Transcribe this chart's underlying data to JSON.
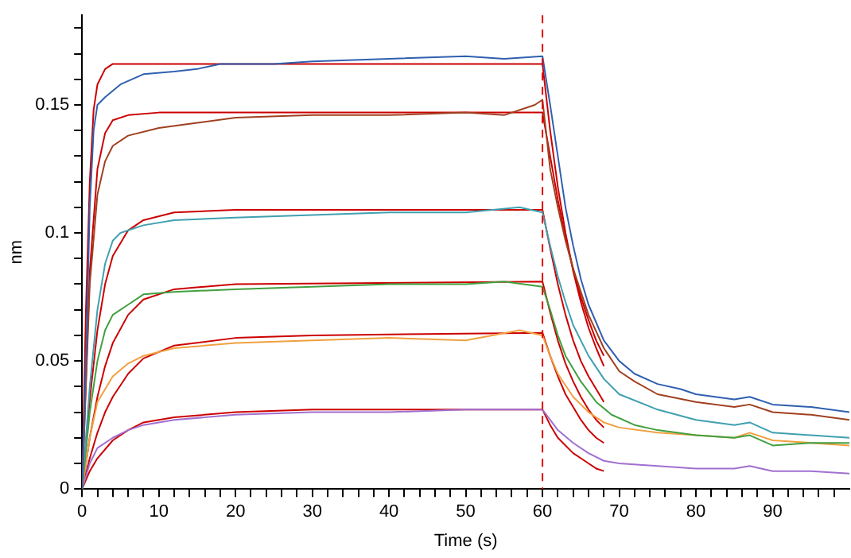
{
  "chart_data": {
    "type": "line",
    "xlabel": "Time (s)",
    "ylabel": "nm",
    "xlim": [
      0,
      100
    ],
    "ylim": [
      0,
      0.185
    ],
    "xticks": [
      0,
      {
        "value": 2,
        "label": null
      },
      {
        "value": 4,
        "label": null
      },
      {
        "value": 6,
        "label": null
      },
      {
        "value": 8,
        "label": null
      },
      10,
      {
        "value": 12,
        "label": null
      },
      {
        "value": 14,
        "label": null
      },
      {
        "value": 16,
        "label": null
      },
      {
        "value": 18,
        "label": null
      },
      20,
      {
        "value": 22,
        "label": null
      },
      {
        "value": 24,
        "label": null
      },
      {
        "value": 26,
        "label": null
      },
      {
        "value": 28,
        "label": null
      },
      30,
      {
        "value": 32,
        "label": null
      },
      {
        "value": 34,
        "label": null
      },
      {
        "value": 36,
        "label": null
      },
      {
        "value": 38,
        "label": null
      },
      40,
      {
        "value": 42,
        "label": null
      },
      {
        "value": 44,
        "label": null
      },
      {
        "value": 46,
        "label": null
      },
      {
        "value": 48,
        "label": null
      },
      50,
      {
        "value": 52,
        "label": null
      },
      {
        "value": 54,
        "label": null
      },
      {
        "value": 56,
        "label": null
      },
      {
        "value": 58,
        "label": null
      },
      60,
      {
        "value": 62,
        "label": null
      },
      {
        "value": 64,
        "label": null
      },
      {
        "value": 66,
        "label": null
      },
      {
        "value": 68,
        "label": null
      },
      70,
      {
        "value": 72,
        "label": null
      },
      {
        "value": 74,
        "label": null
      },
      {
        "value": 76,
        "label": null
      },
      {
        "value": 78,
        "label": null
      },
      80,
      {
        "value": 82,
        "label": null
      },
      {
        "value": 84,
        "label": null
      },
      {
        "value": 86,
        "label": null
      },
      {
        "value": 88,
        "label": null
      },
      90,
      {
        "value": 92,
        "label": null
      },
      {
        "value": 94,
        "label": null
      },
      {
        "value": 96,
        "label": null
      },
      {
        "value": 98,
        "label": null
      }
    ],
    "yticks": [
      0,
      {
        "value": 0.01,
        "label": null
      },
      {
        "value": 0.02,
        "label": null
      },
      {
        "value": 0.03,
        "label": null
      },
      {
        "value": 0.04,
        "label": null
      },
      0.05,
      {
        "value": 0.06,
        "label": null
      },
      {
        "value": 0.07,
        "label": null
      },
      {
        "value": 0.08,
        "label": null
      },
      {
        "value": 0.09,
        "label": null
      },
      0.1,
      {
        "value": 0.11,
        "label": null
      },
      {
        "value": 0.12,
        "label": null
      },
      {
        "value": 0.13,
        "label": null
      },
      {
        "value": 0.14,
        "label": null
      },
      0.15,
      {
        "value": 0.16,
        "label": null
      },
      {
        "value": 0.17,
        "label": null
      },
      {
        "value": 0.18,
        "label": null
      }
    ],
    "grid": false,
    "legend": false,
    "marker": "none",
    "line_style": "solid",
    "ref_lines": [
      {
        "axis": "x",
        "value": 60,
        "label": null,
        "color": "#e00000",
        "line_style": "dashed"
      }
    ],
    "series": [
      {
        "color": "#3060b0",
        "x": [
          0,
          0.5,
          1,
          1.5,
          2,
          3,
          5,
          8,
          12,
          15,
          18,
          25,
          30,
          40,
          50,
          55,
          60,
          61,
          62,
          63,
          64,
          65,
          66,
          68,
          70,
          72,
          75,
          78,
          80,
          85,
          87,
          90,
          95,
          100
        ],
        "values": [
          0,
          0.05,
          0.11,
          0.14,
          0.15,
          0.153,
          0.158,
          0.162,
          0.163,
          0.164,
          0.166,
          0.166,
          0.167,
          0.168,
          0.169,
          0.168,
          0.169,
          0.15,
          0.13,
          0.11,
          0.095,
          0.082,
          0.072,
          0.058,
          0.05,
          0.045,
          0.041,
          0.039,
          0.037,
          0.035,
          0.036,
          0.033,
          0.032,
          0.03
        ]
      },
      {
        "color": "#a04020",
        "x": [
          0,
          1,
          2,
          3,
          4,
          6,
          10,
          15,
          20,
          30,
          40,
          50,
          55,
          59,
          60,
          61,
          62,
          63,
          64,
          66,
          68,
          70,
          72,
          75,
          80,
          85,
          87,
          90,
          95,
          100
        ],
        "values": [
          0,
          0.08,
          0.115,
          0.128,
          0.134,
          0.138,
          0.141,
          0.143,
          0.145,
          0.146,
          0.146,
          0.147,
          0.146,
          0.15,
          0.152,
          0.125,
          0.11,
          0.097,
          0.086,
          0.068,
          0.055,
          0.046,
          0.042,
          0.037,
          0.034,
          0.032,
          0.033,
          0.03,
          0.029,
          0.027
        ]
      },
      {
        "color": "#40a0b0",
        "x": [
          0,
          1,
          2,
          3,
          4,
          5,
          8,
          12,
          20,
          30,
          40,
          50,
          57,
          60,
          61,
          62,
          63,
          64,
          66,
          68,
          70,
          75,
          80,
          85,
          87,
          90,
          95,
          100
        ],
        "values": [
          0,
          0.04,
          0.07,
          0.088,
          0.097,
          0.1,
          0.103,
          0.105,
          0.106,
          0.107,
          0.108,
          0.108,
          0.11,
          0.108,
          0.095,
          0.083,
          0.073,
          0.064,
          0.052,
          0.043,
          0.037,
          0.031,
          0.027,
          0.025,
          0.026,
          0.022,
          0.021,
          0.02
        ]
      },
      {
        "color": "#40a040",
        "x": [
          0,
          1,
          2,
          3,
          4,
          6,
          8,
          12,
          20,
          30,
          40,
          50,
          55,
          60,
          61,
          62,
          63,
          65,
          67,
          69,
          72,
          75,
          80,
          85,
          87,
          90,
          95,
          100
        ],
        "values": [
          0,
          0.03,
          0.05,
          0.062,
          0.068,
          0.072,
          0.076,
          0.077,
          0.078,
          0.079,
          0.08,
          0.08,
          0.081,
          0.079,
          0.07,
          0.06,
          0.052,
          0.042,
          0.034,
          0.029,
          0.025,
          0.023,
          0.021,
          0.02,
          0.021,
          0.017,
          0.018,
          0.018
        ]
      },
      {
        "color": "#f0a040",
        "x": [
          0,
          1,
          2,
          4,
          6,
          8,
          12,
          20,
          30,
          40,
          50,
          57,
          60,
          61,
          62,
          64,
          66,
          68,
          70,
          75,
          80,
          85,
          87,
          90,
          95,
          100
        ],
        "values": [
          0,
          0.02,
          0.034,
          0.044,
          0.049,
          0.052,
          0.055,
          0.057,
          0.058,
          0.059,
          0.058,
          0.062,
          0.06,
          0.052,
          0.045,
          0.036,
          0.03,
          0.026,
          0.024,
          0.022,
          0.021,
          0.02,
          0.022,
          0.019,
          0.018,
          0.017
        ]
      },
      {
        "color": "#a070d0",
        "x": [
          0,
          1,
          2,
          4,
          6,
          8,
          12,
          20,
          30,
          40,
          50,
          60,
          61,
          62,
          64,
          66,
          68,
          70,
          75,
          80,
          85,
          87,
          90,
          95,
          100
        ],
        "values": [
          0,
          0.01,
          0.016,
          0.02,
          0.023,
          0.025,
          0.027,
          0.029,
          0.03,
          0.03,
          0.031,
          0.031,
          0.027,
          0.023,
          0.018,
          0.014,
          0.011,
          0.01,
          0.009,
          0.008,
          0.008,
          0.009,
          0.007,
          0.007,
          0.006
        ]
      },
      {
        "color": "#cc0000",
        "x": [
          0,
          0.5,
          1,
          1.5,
          2,
          3,
          4,
          10,
          60,
          61,
          62,
          63,
          64,
          65,
          66,
          67,
          68
        ],
        "values": [
          0,
          0.07,
          0.12,
          0.148,
          0.158,
          0.164,
          0.166,
          0.166,
          0.166,
          0.14,
          0.118,
          0.1,
          0.085,
          0.073,
          0.063,
          0.055,
          0.048
        ]
      },
      {
        "color": "#cc0000",
        "x": [
          0,
          1,
          2,
          3,
          4,
          6,
          10,
          60,
          61,
          62,
          63,
          64,
          65,
          66,
          67,
          68
        ],
        "values": [
          0,
          0.085,
          0.125,
          0.139,
          0.144,
          0.146,
          0.147,
          0.147,
          0.13,
          0.113,
          0.098,
          0.086,
          0.075,
          0.066,
          0.058,
          0.052
        ]
      },
      {
        "color": "#cc0000",
        "x": [
          0,
          1,
          2,
          3,
          4,
          6,
          8,
          12,
          20,
          60,
          61,
          62,
          63,
          64,
          65,
          66,
          67,
          68
        ],
        "values": [
          0,
          0.035,
          0.062,
          0.08,
          0.091,
          0.101,
          0.105,
          0.108,
          0.109,
          0.109,
          0.094,
          0.08,
          0.068,
          0.058,
          0.05,
          0.044,
          0.039,
          0.034
        ]
      },
      {
        "color": "#cc0000",
        "x": [
          0,
          1,
          2,
          3,
          4,
          6,
          8,
          12,
          20,
          60,
          61,
          62,
          63,
          64,
          65,
          66,
          67,
          68
        ],
        "values": [
          0,
          0.02,
          0.036,
          0.048,
          0.057,
          0.068,
          0.074,
          0.078,
          0.08,
          0.081,
          0.069,
          0.058,
          0.049,
          0.042,
          0.036,
          0.031,
          0.027,
          0.024
        ]
      },
      {
        "color": "#cc0000",
        "x": [
          0,
          1,
          2,
          3,
          4,
          6,
          8,
          12,
          20,
          30,
          60,
          61,
          62,
          63,
          64,
          65,
          66,
          67,
          68
        ],
        "values": [
          0,
          0.012,
          0.022,
          0.03,
          0.036,
          0.045,
          0.051,
          0.056,
          0.059,
          0.06,
          0.061,
          0.052,
          0.044,
          0.037,
          0.032,
          0.027,
          0.023,
          0.02,
          0.018
        ]
      },
      {
        "color": "#cc0000",
        "x": [
          0,
          1,
          2,
          4,
          6,
          8,
          12,
          20,
          30,
          60,
          61,
          62,
          63,
          64,
          65,
          66,
          67,
          68
        ],
        "values": [
          0,
          0.007,
          0.012,
          0.019,
          0.023,
          0.026,
          0.028,
          0.03,
          0.031,
          0.031,
          0.025,
          0.02,
          0.017,
          0.014,
          0.012,
          0.01,
          0.008,
          0.007
        ]
      }
    ]
  }
}
